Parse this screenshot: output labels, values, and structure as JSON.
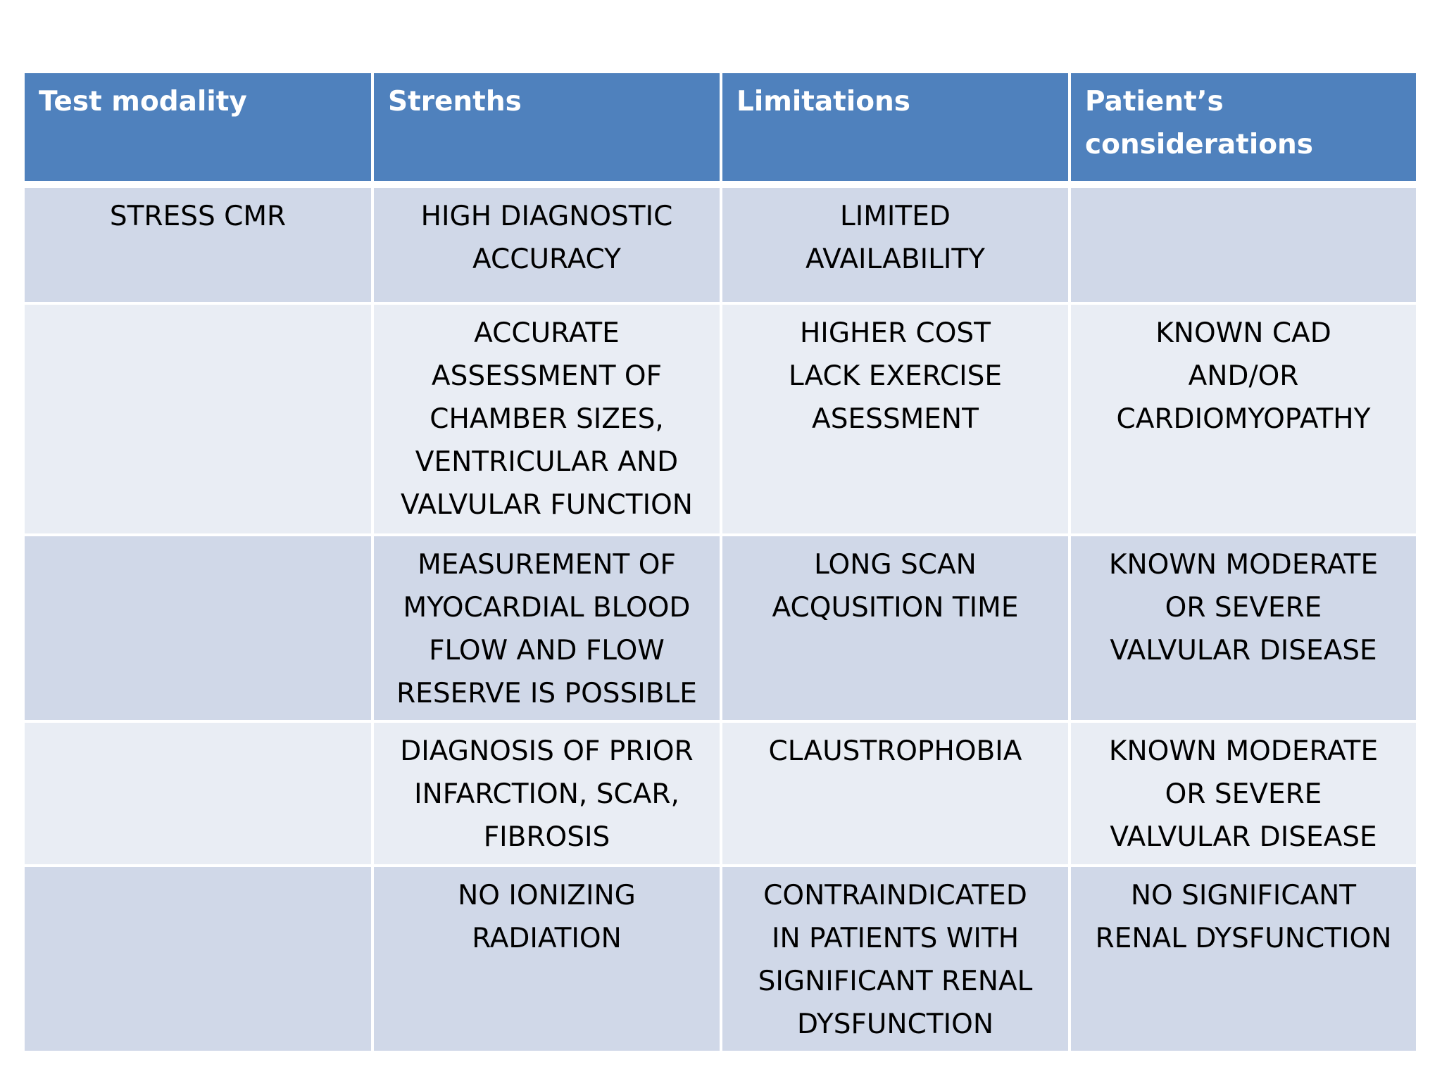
{
  "table": {
    "header": [
      [
        "Test modality"
      ],
      [
        "Strenths"
      ],
      [
        "Limitations"
      ],
      [
        "Patient’s",
        "considerations"
      ]
    ],
    "rows": [
      [
        [
          "STRESS CMR"
        ],
        [
          "HIGH DIAGNOSTIC",
          "ACCURACY"
        ],
        [
          "LIMITED",
          "AVAILABILITY"
        ],
        null
      ],
      [
        null,
        [
          "ACCURATE",
          "ASSESSMENT OF",
          "CHAMBER SIZES,",
          "VENTRICULAR AND",
          "VALVULAR FUNCTION"
        ],
        [
          "HIGHER COST",
          "LACK EXERCISE",
          "ASESSMENT"
        ],
        [
          "KNOWN CAD",
          "AND/OR",
          "CARDIOMYOPATHY"
        ]
      ],
      [
        null,
        [
          "MEASUREMENT OF",
          "MYOCARDIAL BLOOD",
          "FLOW AND FLOW",
          "RESERVE IS POSSIBLE"
        ],
        [
          "LONG SCAN",
          "ACQUSITION TIME"
        ],
        [
          "KNOWN MODERATE",
          "OR SEVERE",
          "VALVULAR DISEASE"
        ]
      ],
      [
        null,
        [
          "DIAGNOSIS OF PRIOR",
          "INFARCTION, SCAR,",
          "FIBROSIS"
        ],
        [
          "CLAUSTROPHOBIA"
        ],
        [
          "KNOWN MODERATE",
          "OR SEVERE",
          "VALVULAR DISEASE"
        ]
      ],
      [
        null,
        [
          "NO IONIZING",
          "RADIATION"
        ],
        [
          "CONTRAINDICATED",
          "IN PATIENTS WITH",
          "SIGNIFICANT RENAL",
          "DYSFUNCTION"
        ],
        [
          "NO SIGNIFICANT",
          "RENAL DYSFUNCTION"
        ]
      ]
    ]
  }
}
